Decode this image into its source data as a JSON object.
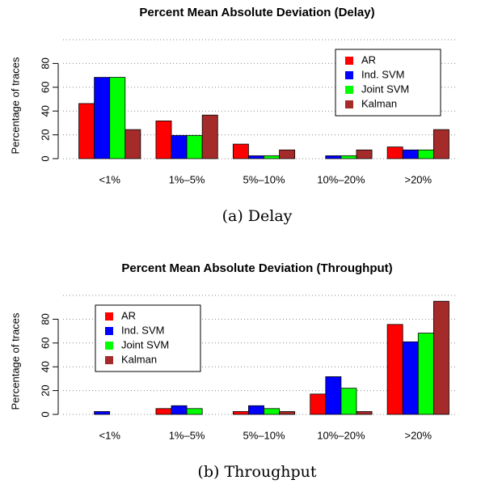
{
  "chart_data": [
    {
      "type": "bar",
      "title": "Percent Mean Absolute Deviation (Delay)",
      "caption": "(a) Delay",
      "ylabel": "Percentage of traces",
      "categories": [
        "<1%",
        "1%–5%",
        "5%–10%",
        "10%–20%",
        ">20%"
      ],
      "series": [
        {
          "name": "AR",
          "color": "#ff0000",
          "values": [
            46.3,
            31.7,
            12.2,
            0,
            9.8
          ]
        },
        {
          "name": "Ind. SVM",
          "color": "#0000ff",
          "values": [
            68.3,
            19.5,
            2.4,
            2.4,
            7.3
          ]
        },
        {
          "name": "Joint SVM",
          "color": "#00ff00",
          "values": [
            68.3,
            19.5,
            2.4,
            2.4,
            7.3
          ]
        },
        {
          "name": "Kalman",
          "color": "#a52a2a",
          "values": [
            24.4,
            36.6,
            7.3,
            7.3,
            24.4
          ]
        }
      ],
      "ylim": [
        0,
        100
      ],
      "yticks": [
        0,
        20,
        40,
        60,
        80
      ],
      "grid": true,
      "legend": "top-right"
    },
    {
      "type": "bar",
      "title": "Percent Mean Absolute Deviation (Throughput)",
      "caption": "(b) Throughput",
      "ylabel": "Percentage of traces",
      "categories": [
        "<1%",
        "1%–5%",
        "5%–10%",
        "10%–20%",
        ">20%"
      ],
      "series": [
        {
          "name": "AR",
          "color": "#ff0000",
          "values": [
            0,
            4.9,
            2.4,
            17.1,
            75.6
          ]
        },
        {
          "name": "Ind. SVM",
          "color": "#0000ff",
          "values": [
            2.4,
            7.3,
            7.3,
            31.7,
            61.0
          ]
        },
        {
          "name": "Joint SVM",
          "color": "#00ff00",
          "values": [
            0,
            4.9,
            4.9,
            22.0,
            68.3
          ]
        },
        {
          "name": "Kalman",
          "color": "#a52a2a",
          "values": [
            0,
            0,
            2.4,
            2.4,
            95.1
          ]
        }
      ],
      "ylim": [
        0,
        100
      ],
      "yticks": [
        0,
        20,
        40,
        60,
        80
      ],
      "grid": true,
      "legend": "top-left"
    }
  ]
}
